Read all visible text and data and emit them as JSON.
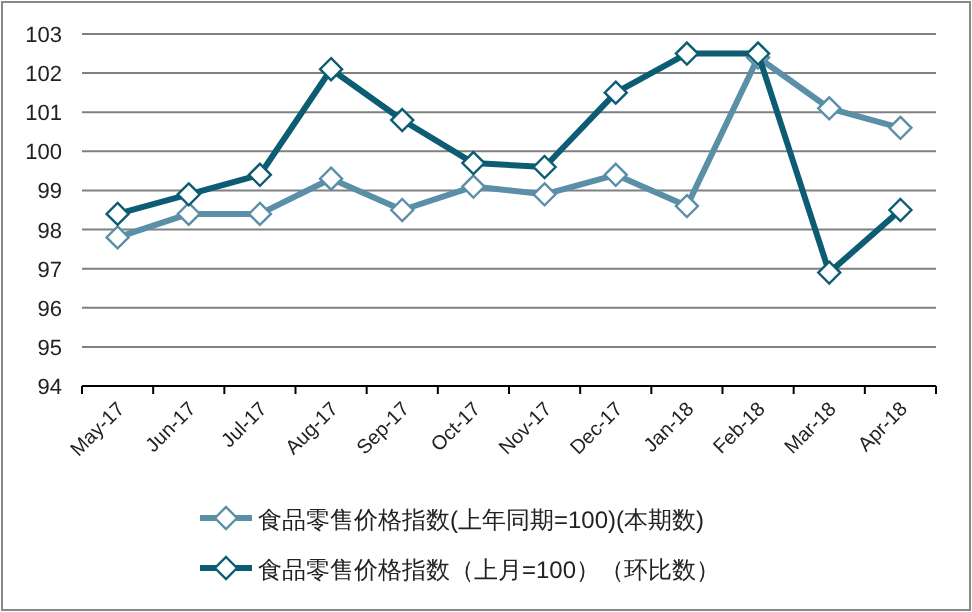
{
  "chart_data": {
    "type": "line",
    "categories": [
      "May-17",
      "Jun-17",
      "Jul-17",
      "Aug-17",
      "Sep-17",
      "Oct-17",
      "Nov-17",
      "Dec-17",
      "Jan-18",
      "Feb-18",
      "Mar-18",
      "Apr-18"
    ],
    "series": [
      {
        "name": "食品零售价格指数(上年同期=100)(本期数)",
        "color": "#5b8fa8",
        "values": [
          97.8,
          98.4,
          98.4,
          99.3,
          98.5,
          99.1,
          98.9,
          99.4,
          98.6,
          102.4,
          101.1,
          100.6
        ]
      },
      {
        "name": "食品零售价格指数（上月=100）（环比数）",
        "color": "#0c5c74",
        "values": [
          98.4,
          98.9,
          99.4,
          102.1,
          100.8,
          99.7,
          99.6,
          101.5,
          102.5,
          102.5,
          96.9,
          98.5
        ]
      }
    ],
    "ylim": [
      94,
      103
    ],
    "yticks": [
      94,
      95,
      96,
      97,
      98,
      99,
      100,
      101,
      102,
      103
    ],
    "grid": "y",
    "legend": "bottom",
    "marker": "diamond",
    "line_style": "solid"
  }
}
